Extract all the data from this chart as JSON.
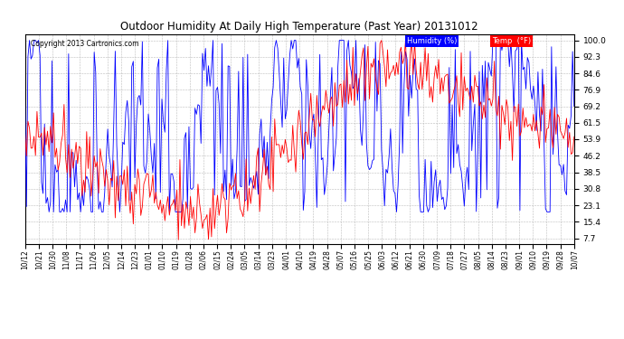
{
  "title": "Outdoor Humidity At Daily High Temperature (Past Year) 20131012",
  "copyright": "Copyright 2013 Cartronics.com",
  "legend_humidity": "Humidity (%)",
  "legend_temp": "Temp  (°F)",
  "humidity_color": "#0000ff",
  "temp_color": "#ff0000",
  "background_color": "#ffffff",
  "plot_bg_color": "#ffffff",
  "grid_color": "#bbbbbb",
  "yticks": [
    7.7,
    15.4,
    23.1,
    30.8,
    38.5,
    46.2,
    53.9,
    61.5,
    69.2,
    76.9,
    84.6,
    92.3,
    100.0
  ],
  "ylim": [
    5,
    103
  ],
  "xtick_labels": [
    "10/12",
    "10/21",
    "10/30",
    "11/08",
    "11/17",
    "11/26",
    "12/05",
    "12/14",
    "12/23",
    "01/01",
    "01/10",
    "01/19",
    "01/28",
    "02/06",
    "02/15",
    "02/24",
    "03/05",
    "03/14",
    "03/23",
    "04/01",
    "04/10",
    "04/19",
    "04/28",
    "05/07",
    "05/16",
    "05/25",
    "06/03",
    "06/12",
    "06/21",
    "06/30",
    "07/09",
    "07/18",
    "07/27",
    "08/05",
    "08/14",
    "08/23",
    "09/01",
    "09/10",
    "09/19",
    "09/28",
    "10/07"
  ],
  "n_points": 366,
  "figsize": [
    6.9,
    3.75
  ],
  "dpi": 100
}
